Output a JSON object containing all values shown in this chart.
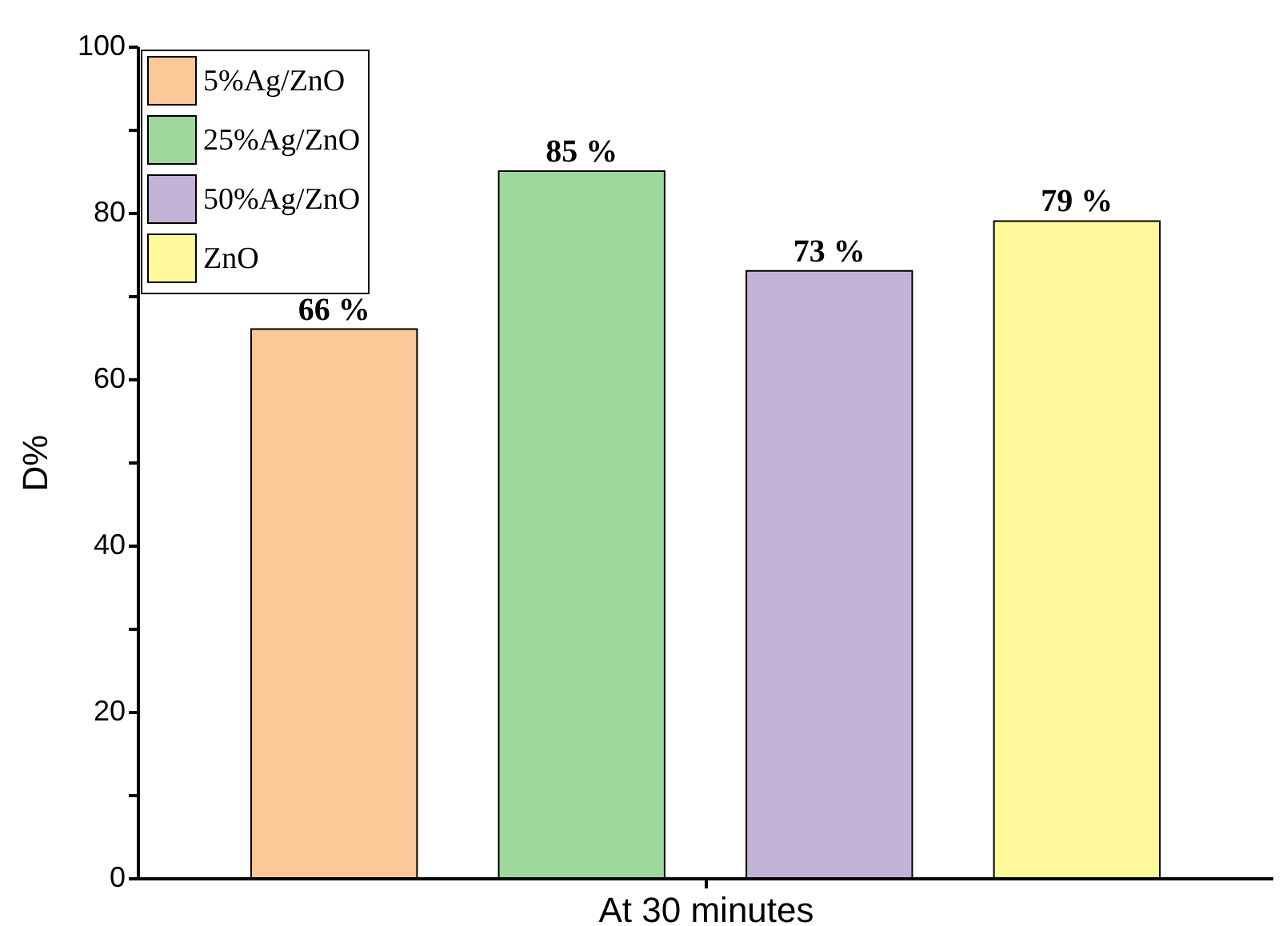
{
  "chart_data": {
    "type": "bar",
    "xlabel": "At 30 minutes",
    "ylabel": "D%",
    "categories": [
      null
    ],
    "series": [
      {
        "name": "5%Ag/ZnO",
        "color": "#fbc897",
        "values": [
          66
        ],
        "value_labels": [
          "66 %"
        ]
      },
      {
        "name": "25%Ag/ZnO",
        "color": "#9fd89d",
        "values": [
          85
        ],
        "value_labels": [
          "85 %"
        ]
      },
      {
        "name": "50%Ag/ZnO",
        "color": "#c2b2d6",
        "values": [
          73
        ],
        "value_labels": [
          "73 %"
        ]
      },
      {
        "name": "ZnO",
        "color": "#fefa9c",
        "values": [
          79
        ],
        "value_labels": [
          "79 %"
        ]
      }
    ],
    "ylim": [
      0,
      100
    ],
    "yticks": [
      0,
      {
        "value": 10,
        "label": null
      },
      20,
      {
        "value": 30,
        "label": null
      },
      40,
      {
        "value": 50,
        "label": null
      },
      60,
      {
        "value": 70,
        "label": null
      },
      80,
      {
        "value": 90,
        "label": null
      },
      100
    ],
    "grid": false,
    "legend": "top left"
  }
}
